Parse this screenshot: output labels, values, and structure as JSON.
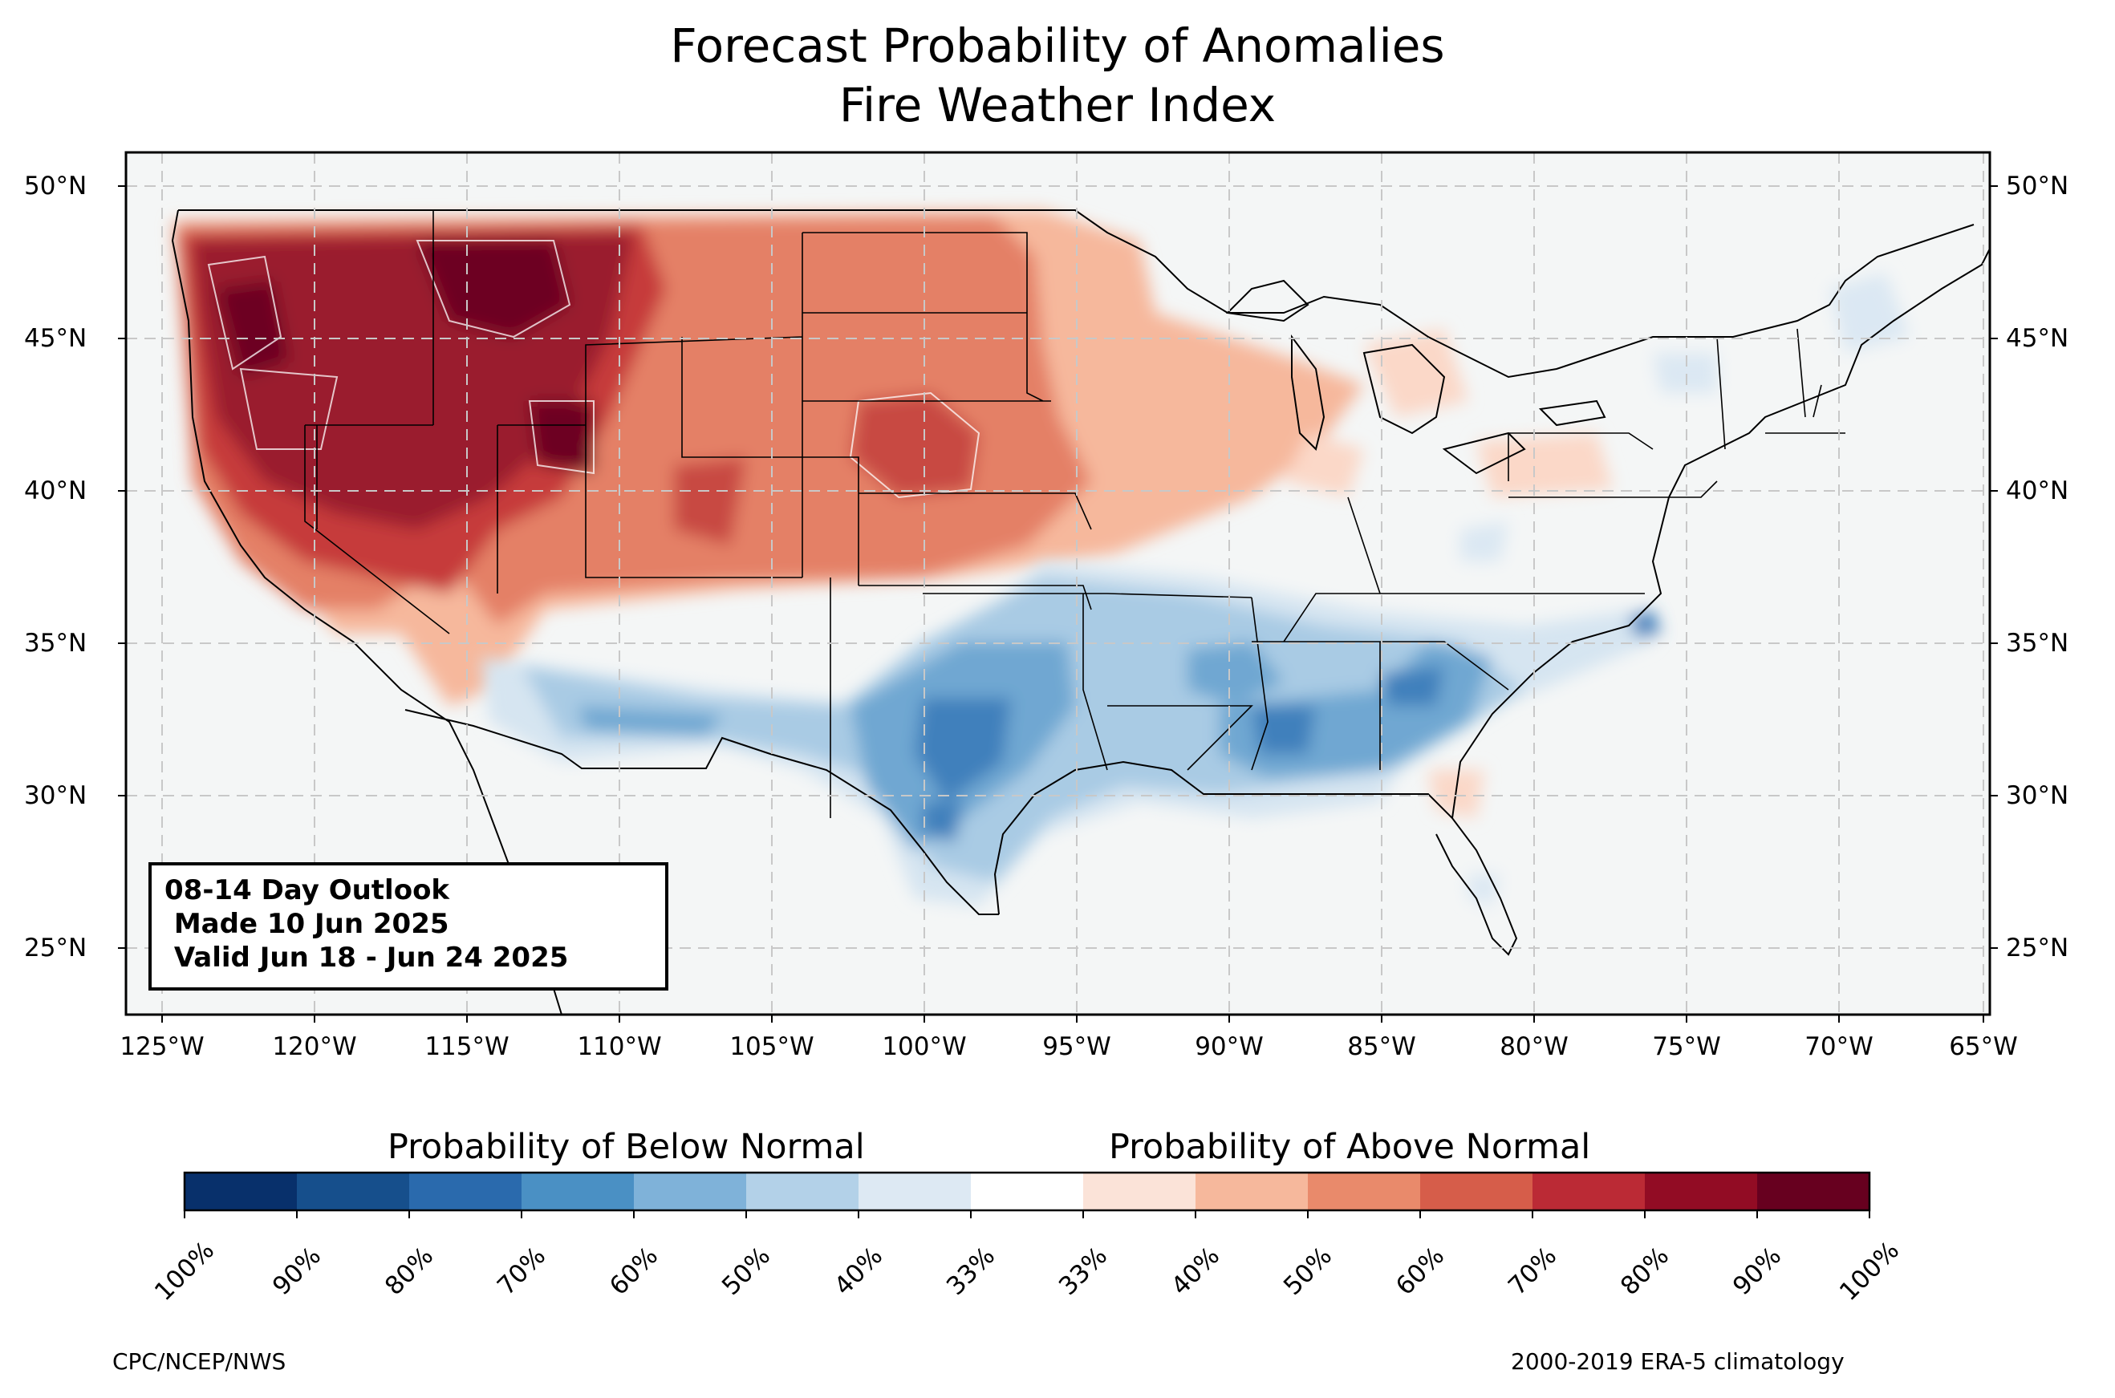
{
  "title_line1": "Forecast Probability of Anomalies",
  "title_line2": "Fire Weather Index",
  "lat_labels": [
    "50°N",
    "45°N",
    "40°N",
    "35°N",
    "30°N",
    "25°N"
  ],
  "lon_labels": [
    "125°W",
    "120°W",
    "115°W",
    "110°W",
    "105°W",
    "100°W",
    "95°W",
    "90°W",
    "85°W",
    "80°W",
    "75°W",
    "70°W",
    "65°W"
  ],
  "outlook": {
    "line1": "08-14 Day Outlook",
    "line2": " Made 10 Jun 2025",
    "line3": " Valid Jun 18 - Jun 24 2025"
  },
  "colorbar": {
    "below_title": "Probability of Below Normal",
    "above_title": "Probability of Above Normal",
    "tick_labels": [
      "100%",
      "90%",
      "80%",
      "70%",
      "60%",
      "50%",
      "40%",
      "33%",
      "33%",
      "40%",
      "50%",
      "60%",
      "70%",
      "80%",
      "90%",
      "100%"
    ],
    "colors": [
      "#08306b",
      "#164f8c",
      "#2a6aad",
      "#4a90c4",
      "#7fb2d9",
      "#b3d1e8",
      "#dde9f3",
      "#ffffff",
      "#fbe3d8",
      "#f6b89c",
      "#e98a6b",
      "#d65d4a",
      "#bb2a35",
      "#920c24",
      "#67001f"
    ]
  },
  "credits": {
    "left": "CPC/NCEP/NWS",
    "right": "2000-2019 ERA-5 climatology"
  },
  "legend_colors": {
    "ocean": "#f4f6f6",
    "land": "#f4f6f6",
    "border": "#000000"
  }
}
